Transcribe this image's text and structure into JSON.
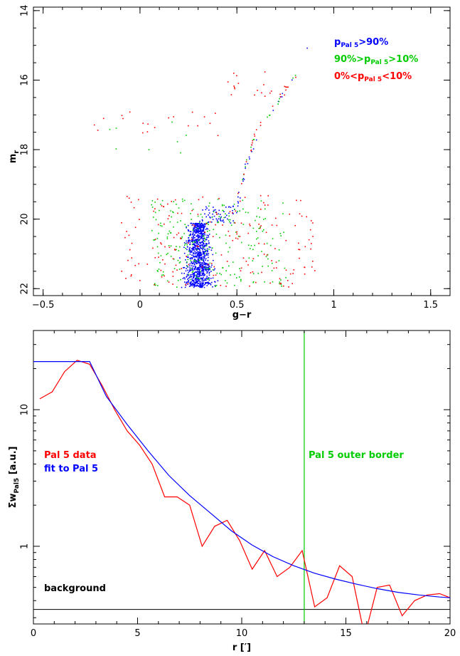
{
  "colors": {
    "blue": "#0000ff",
    "green": "#00cc00",
    "red": "#ff0000",
    "black": "#000000"
  },
  "chart_data": [
    {
      "type": "scatter",
      "xlabel": "g−r",
      "ylabel": "m_r",
      "ylabel_main": "m",
      "ylabel_sub": "r",
      "xlim": [
        -0.55,
        1.6
      ],
      "ylim": [
        22.2,
        13.9
      ],
      "y_inverted": true,
      "xticks": [
        -0.5,
        0,
        0.5,
        1,
        1.5
      ],
      "xtick_labels": [
        "−0.5",
        "0",
        "0.5",
        "1",
        "1.5"
      ],
      "yticks": [
        14,
        16,
        18,
        20,
        22
      ],
      "ytick_labels": [
        "14",
        "16",
        "18",
        "20",
        "22"
      ],
      "legend": {
        "placement": "top-right",
        "entries": [
          {
            "main": "p",
            "sub": "Pal 5",
            "suffix": ">90%",
            "prefix": "",
            "color": "#0000ff"
          },
          {
            "main": "90%>p",
            "sub": "Pal 5",
            "suffix": ">10%",
            "prefix": "",
            "color": "#00cc00"
          },
          {
            "main": "0%<p",
            "sub": "Pal 5",
            "suffix": "<10%",
            "prefix": "",
            "color": "#ff0000"
          }
        ]
      },
      "series": [
        {
          "name": "p_Pal 5 > 90%",
          "color": "#0000ff",
          "components": [
            {
              "kind": "main-sequence-cloud",
              "x_center": 0.3,
              "x_spread": 0.1,
              "y_range": [
                20.1,
                21.95
              ],
              "n": 900
            },
            {
              "kind": "subgiant",
              "x_range": [
                0.3,
                0.5
              ],
              "y_range": [
                19.6,
                20.1
              ],
              "n": 60
            },
            {
              "kind": "red-giant-branch",
              "points": [
                [
                  0.5,
                  19.6
                ],
                [
                  0.52,
                  19.0
                ],
                [
                  0.55,
                  18.4
                ],
                [
                  0.6,
                  17.6
                ],
                [
                  0.7,
                  16.7
                ],
                [
                  0.77,
                  16.1
                ],
                [
                  0.87,
                  15.0
                ]
              ],
              "n": 25
            }
          ]
        },
        {
          "name": "90% > p_Pal 5 > 10%",
          "color": "#00cc00",
          "components": [
            {
              "kind": "field",
              "x_range": [
                0.05,
                0.75
              ],
              "y_range": [
                19.4,
                21.95
              ],
              "n": 260
            },
            {
              "kind": "horizontal-branch",
              "x_range": [
                -0.3,
                0.3
              ],
              "y_range": [
                17.1,
                18.1
              ],
              "n": 8
            },
            {
              "kind": "red-giant-branch",
              "points": [
                [
                  0.5,
                  19.4
                ],
                [
                  0.55,
                  18.2
                ],
                [
                  0.6,
                  17.5
                ],
                [
                  0.7,
                  16.7
                ],
                [
                  0.8,
                  15.8
                ]
              ],
              "n": 15
            }
          ]
        },
        {
          "name": "0% < p_Pal 5 < 10%",
          "color": "#ff0000",
          "components": [
            {
              "kind": "field",
              "x_range": [
                -0.1,
                0.9
              ],
              "y_range": [
                19.3,
                21.95
              ],
              "n": 190
            },
            {
              "kind": "horizontal-branch",
              "x_range": [
                -0.25,
                0.45
              ],
              "y_range": [
                16.9,
                17.6
              ],
              "n": 20
            },
            {
              "kind": "asymptotic-giant",
              "x_range": [
                0.45,
                0.75
              ],
              "y_range": [
                15.7,
                16.5
              ],
              "n": 20
            },
            {
              "kind": "red-giant-branch",
              "points": [
                [
                  0.5,
                  19.3
                ],
                [
                  0.55,
                  18.3
                ],
                [
                  0.6,
                  17.4
                ],
                [
                  0.7,
                  16.6
                ],
                [
                  0.8,
                  15.9
                ]
              ],
              "n": 20
            }
          ]
        }
      ]
    },
    {
      "type": "line",
      "xlabel": "r [′]",
      "ylabel": "ΣwPal5 [a.u.]",
      "ylabel_main": "Σw",
      "ylabel_sub": "Pal5",
      "ylabel_suffix": " [a.u.]",
      "y_scale": "log",
      "xlim": [
        0,
        20
      ],
      "ylim": [
        0.27,
        38
      ],
      "xticks": [
        0,
        5,
        10,
        15,
        20
      ],
      "xtick_labels": [
        "0",
        "5",
        "10",
        "15",
        "20"
      ],
      "yticks": [
        1,
        10
      ],
      "ytick_labels": [
        "1",
        "10"
      ],
      "legend": {
        "placement": "middle-left",
        "entries": [
          {
            "label": "Pal 5 data",
            "color": "#ff0000"
          },
          {
            "label": "fit to Pal 5",
            "color": "#0000ff"
          }
        ]
      },
      "annotations": [
        {
          "label": "Pal 5 outer border",
          "x": 13,
          "color": "#00cc00",
          "kind": "vertical-line"
        },
        {
          "label": "background",
          "y": 0.345,
          "color": "#000000",
          "kind": "horizontal-line"
        }
      ],
      "series": [
        {
          "name": "Pal 5 data",
          "color": "#ff0000",
          "x": [
            0.3,
            0.9,
            1.5,
            2.1,
            2.7,
            3.3,
            3.9,
            4.5,
            5.1,
            5.7,
            6.3,
            6.9,
            7.5,
            8.1,
            8.7,
            9.3,
            9.9,
            10.5,
            11.1,
            11.7,
            12.3,
            12.9,
            13.5,
            14.1,
            14.7,
            15.3,
            15.9,
            16.5,
            17.1,
            17.7,
            18.3,
            18.9,
            19.5,
            20.0
          ],
          "y": [
            12.0,
            13.5,
            19.0,
            23.0,
            21.5,
            15.0,
            10.0,
            7.0,
            5.5,
            4.0,
            2.3,
            2.3,
            2.0,
            1.0,
            1.4,
            1.55,
            1.1,
            0.68,
            0.93,
            0.6,
            0.7,
            0.93,
            0.36,
            0.42,
            0.72,
            0.6,
            0.22,
            0.5,
            0.52,
            0.31,
            0.4,
            0.44,
            0.45,
            0.42
          ]
        },
        {
          "name": "fit to Pal 5",
          "color": "#0000ff",
          "model": "king-like",
          "x": [
            0,
            2.7,
            3.5,
            4.5,
            5.5,
            6.5,
            7.5,
            8.5,
            9.5,
            10.5,
            11.5,
            12.5,
            13.5,
            14.5,
            15.5,
            16.5,
            17.5,
            18.5,
            19.5,
            20
          ],
          "y": [
            22.5,
            22.5,
            12.5,
            7.8,
            5.0,
            3.3,
            2.35,
            1.75,
            1.3,
            1.02,
            0.84,
            0.72,
            0.635,
            0.575,
            0.528,
            0.49,
            0.46,
            0.44,
            0.425,
            0.42
          ]
        }
      ]
    }
  ]
}
